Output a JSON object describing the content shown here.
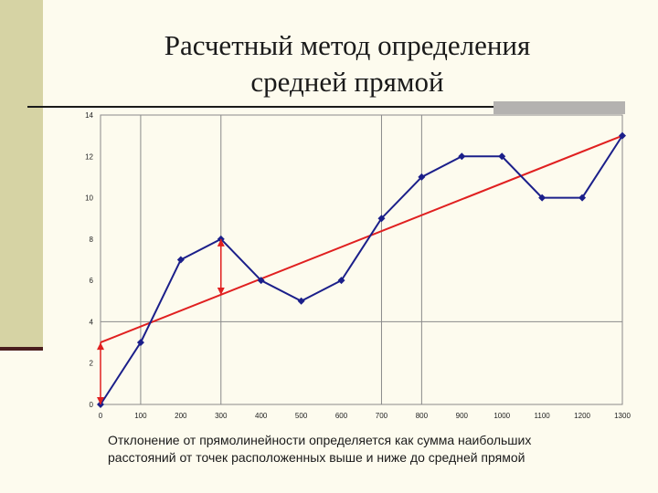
{
  "title": {
    "line1": "Расчетный метод определения",
    "line2": "средней прямой"
  },
  "caption": {
    "line1": "Отклонение от прямолинейности определяется как сумма наибольших",
    "line2": "расстояний от точек расположенных выше и ниже до средней прямой"
  },
  "colors": {
    "background": "#fdfbee",
    "series": "#1b1f8a",
    "trend": "#e02020",
    "grid": "#8a8a8a"
  },
  "chart_data": {
    "type": "line",
    "title": "",
    "xlabel": "",
    "ylabel": "",
    "xlim": [
      0,
      1300
    ],
    "ylim": [
      0,
      14
    ],
    "x_ticks": [
      "0",
      "100",
      "200",
      "300",
      "400",
      "500",
      "600",
      "700",
      "800",
      "900",
      "1000",
      "1100",
      "1200",
      "1300"
    ],
    "y_ticks": [
      "0",
      "2",
      "4",
      "6",
      "8",
      "10",
      "12",
      "14"
    ],
    "grid": "vertical lines at 100, 300, 700, 800; horizontal line at 4",
    "series": [
      {
        "x": [
          0,
          100,
          200,
          300,
          400,
          500,
          600,
          700,
          800,
          900,
          1000,
          1100,
          1200,
          1300
        ],
        "values": [
          0,
          3,
          7,
          8,
          6,
          5,
          6,
          9,
          11,
          12,
          12,
          10,
          10,
          13
        ],
        "marker": "diamond"
      }
    ],
    "trend_line": {
      "x": [
        0,
        1300
      ],
      "y": [
        3,
        13
      ]
    },
    "deviation_arrows": [
      {
        "x": 0,
        "from": 0,
        "to": 3
      },
      {
        "x": 300,
        "from": 8,
        "to": 5.3
      }
    ]
  }
}
